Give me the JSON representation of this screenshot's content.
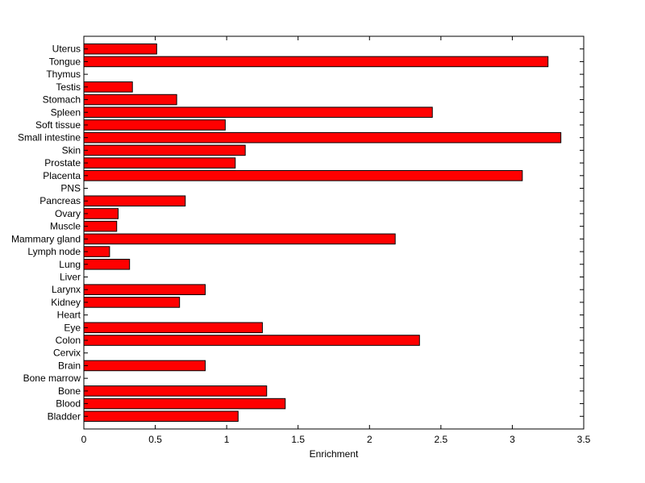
{
  "chart_data": {
    "type": "bar",
    "orientation": "horizontal",
    "xlabel": "Enrichment",
    "ylabel": "",
    "title": "",
    "xlim": [
      0,
      3.5
    ],
    "xticks": [
      0,
      0.5,
      1,
      1.5,
      2,
      2.5,
      3,
      3.5
    ],
    "xtick_labels": [
      "0",
      "0.5",
      "1",
      "1.5",
      "2",
      "2.5",
      "3",
      "3.5"
    ],
    "grid": false,
    "bar_color": "#ff0000",
    "bar_edge_color": "#000000",
    "categories": [
      "Bladder",
      "Blood",
      "Bone",
      "Bone marrow",
      "Brain",
      "Cervix",
      "Colon",
      "Eye",
      "Heart",
      "Kidney",
      "Larynx",
      "Liver",
      "Lung",
      "Lymph node",
      "Mammary gland",
      "Muscle",
      "Ovary",
      "Pancreas",
      "PNS",
      "Placenta",
      "Prostate",
      "Skin",
      "Small intestine",
      "Soft tissue",
      "Spleen",
      "Stomach",
      "Testis",
      "Thymus",
      "Tongue",
      "Uterus"
    ],
    "values": [
      1.08,
      1.41,
      1.28,
      0,
      0.85,
      0,
      2.35,
      1.25,
      0,
      0.67,
      0.85,
      0,
      0.32,
      0.18,
      2.18,
      0.23,
      0.24,
      0.71,
      0,
      3.07,
      1.06,
      1.13,
      3.34,
      0.99,
      2.44,
      0.65,
      0.34,
      0,
      3.25,
      0.51
    ]
  }
}
